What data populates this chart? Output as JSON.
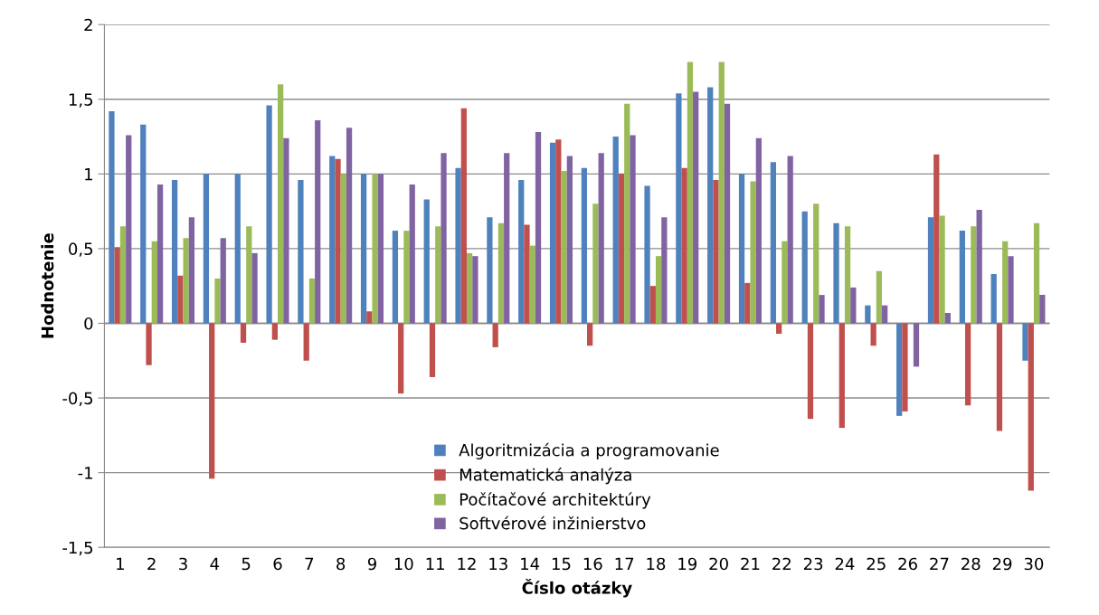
{
  "chart_data": {
    "type": "bar",
    "xlabel": "Číslo otázky",
    "ylabel": "Hodnotenie",
    "categories": [
      "1",
      "2",
      "3",
      "4",
      "5",
      "6",
      "7",
      "8",
      "9",
      "10",
      "11",
      "12",
      "13",
      "14",
      "15",
      "16",
      "17",
      "18",
      "19",
      "20",
      "21",
      "22",
      "23",
      "24",
      "25",
      "26",
      "27",
      "28",
      "29",
      "30"
    ],
    "series": [
      {
        "name": "Algoritmizácia a programovanie",
        "color": "#4f81bd",
        "values": [
          1.42,
          1.33,
          0.96,
          1.0,
          1.0,
          1.46,
          0.96,
          1.12,
          1.0,
          0.62,
          0.83,
          1.04,
          0.71,
          0.96,
          1.21,
          1.04,
          1.25,
          0.92,
          1.54,
          1.58,
          1.0,
          1.08,
          0.75,
          0.67,
          0.12,
          -0.62,
          0.71,
          0.62,
          0.33,
          -0.25
        ]
      },
      {
        "name": "Matematická analýza",
        "color": "#c0504d",
        "values": [
          0.51,
          -0.28,
          0.32,
          -1.04,
          -0.13,
          -0.11,
          -0.25,
          1.1,
          0.08,
          -0.47,
          -0.36,
          1.44,
          -0.16,
          0.66,
          1.23,
          -0.15,
          1.0,
          0.25,
          1.04,
          0.96,
          0.27,
          -0.07,
          -0.64,
          -0.7,
          -0.15,
          -0.59,
          1.13,
          -0.55,
          -0.72,
          -1.12
        ]
      },
      {
        "name": "Počítačové architektúry",
        "color": "#9bbb59",
        "values": [
          0.65,
          0.55,
          0.57,
          0.3,
          0.65,
          1.6,
          0.3,
          1.0,
          1.0,
          0.62,
          0.65,
          0.47,
          0.67,
          0.52,
          1.02,
          0.8,
          1.47,
          0.45,
          1.75,
          1.75,
          0.95,
          0.55,
          0.8,
          0.65,
          0.35,
          0,
          0.72,
          0.65,
          0.55,
          0.67
        ]
      },
      {
        "name": "Softvérové inžinierstvo",
        "color": "#8064a2",
        "values": [
          1.26,
          0.93,
          0.71,
          0.57,
          0.47,
          1.24,
          1.36,
          1.31,
          1.0,
          0.93,
          1.14,
          0.45,
          1.14,
          1.28,
          1.12,
          1.14,
          1.26,
          0.71,
          1.55,
          1.47,
          1.24,
          1.12,
          0.19,
          0.24,
          0.12,
          -0.29,
          0.07,
          0.76,
          0.45,
          0.19
        ]
      }
    ],
    "ylim": [
      -1.5,
      2
    ],
    "yticks": [
      {
        "value": -1.5,
        "label": "-1,5"
      },
      {
        "value": -1,
        "label": "-1"
      },
      {
        "value": -0.5,
        "label": "-0,5"
      },
      0,
      {
        "value": 0.5,
        "label": "0,5"
      },
      1,
      {
        "value": 1.5,
        "label": "1,5"
      },
      2
    ],
    "grid": "y",
    "legend": "lower center"
  }
}
